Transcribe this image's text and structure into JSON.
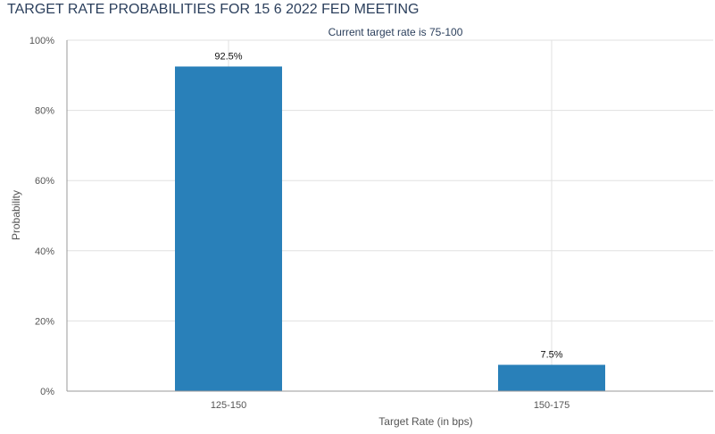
{
  "chart_data": {
    "type": "bar",
    "title": "TARGET RATE PROBABILITIES FOR 15 6 2022 FED MEETING",
    "subtitle": "Current target rate is 75-100",
    "xlabel": "Target Rate (in bps)",
    "ylabel": "Probability",
    "categories": [
      "125-150",
      "150-175"
    ],
    "values": [
      92.5,
      7.5
    ],
    "value_labels": [
      "92.5%",
      "7.5%"
    ],
    "y_ticks": [
      0,
      20,
      40,
      60,
      80,
      100
    ],
    "y_tick_labels": [
      "0%",
      "20%",
      "40%",
      "60%",
      "80%",
      "100%"
    ],
    "ylim": [
      0,
      100
    ],
    "grid": true,
    "legend": "none",
    "bar_color": "#2980b9",
    "grid_color": "#e0e0e0",
    "axis_color": "#999999"
  }
}
